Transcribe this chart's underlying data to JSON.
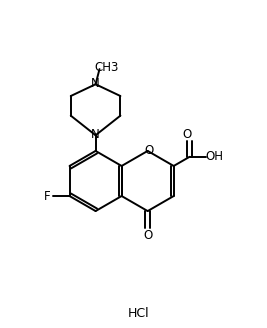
{
  "background_color": "#ffffff",
  "line_color": "#000000",
  "line_width": 1.4,
  "font_size": 8.5,
  "label_HCl": "HCl",
  "label_F": "F",
  "label_O_ketone": "O",
  "label_O_ring": "O",
  "label_OH": "OH",
  "label_O_acid": "O",
  "label_N_top": "N",
  "label_N_bottom": "N",
  "label_CH3": "CH3",
  "figsize": [
    2.67,
    3.28
  ],
  "dpi": 100
}
